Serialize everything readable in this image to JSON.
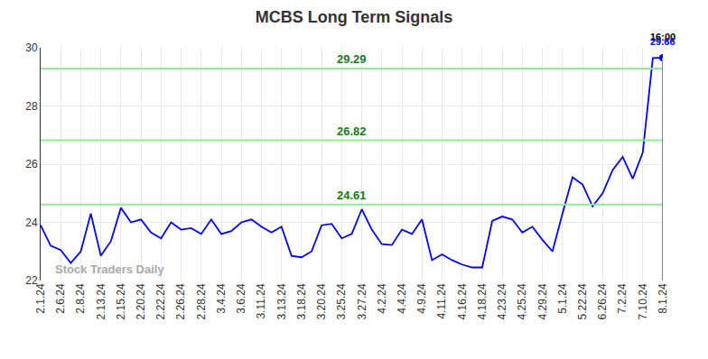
{
  "chart_data": {
    "type": "line",
    "title": "MCBS Long Term Signals",
    "categories": [
      "2.1.24",
      null,
      "2.6.24",
      null,
      "2.8.24",
      null,
      "2.13.24",
      null,
      "2.15.24",
      null,
      "2.20.24",
      null,
      "2.22.24",
      null,
      "2.26.24",
      null,
      "2.28.24",
      null,
      "3.4.24",
      null,
      "3.6.24",
      null,
      "3.11.24",
      null,
      "3.13.24",
      null,
      "3.18.24",
      null,
      "3.20.24",
      null,
      "3.25.24",
      null,
      "3.27.24",
      null,
      "4.2.24",
      null,
      "4.4.24",
      null,
      "4.9.24",
      null,
      "4.11.24",
      null,
      "4.16.24",
      null,
      "4.18.24",
      null,
      "4.23.24",
      null,
      "4.25.24",
      null,
      "4.29.24",
      null,
      "5.1.24",
      null,
      "5.22.24",
      null,
      "6.26.24",
      null,
      "7.2.24",
      null,
      "7.10.24",
      null,
      "8.1.24"
    ],
    "values": [
      23.9,
      23.2,
      23.05,
      22.6,
      23.0,
      24.3,
      22.85,
      23.35,
      24.5,
      24.0,
      24.1,
      23.65,
      23.45,
      24.0,
      23.75,
      23.8,
      23.6,
      24.1,
      23.6,
      23.7,
      24.0,
      24.1,
      23.85,
      23.65,
      23.85,
      22.85,
      22.8,
      23.0,
      23.9,
      23.95,
      23.45,
      23.6,
      24.45,
      23.75,
      23.25,
      23.22,
      23.75,
      23.6,
      24.1,
      22.7,
      22.9,
      22.7,
      22.55,
      22.45,
      22.45,
      24.05,
      24.2,
      24.1,
      23.65,
      23.85,
      23.4,
      23.0,
      24.3,
      25.55,
      25.3,
      24.55,
      25.0,
      25.8,
      26.25,
      25.5,
      26.4,
      29.65,
      29.66
    ],
    "color": "#0000ff",
    "ylim": [
      22,
      30
    ],
    "yticks": [
      22,
      24,
      26,
      28,
      30
    ],
    "grid": true,
    "levels": [
      {
        "value": 24.61,
        "label": "24.61"
      },
      {
        "value": 26.82,
        "label": "26.82"
      },
      {
        "value": 29.29,
        "label": "29.29"
      }
    ],
    "annotations": [
      "16:00",
      "29.66"
    ],
    "watermark": "Stock Traders Daily"
  }
}
